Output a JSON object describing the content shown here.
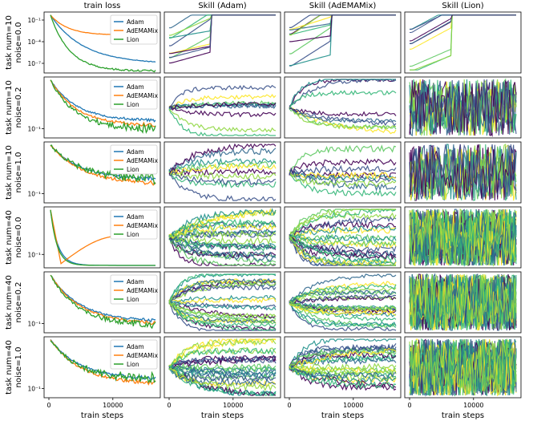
{
  "figure": {
    "column_titles": [
      "train loss",
      "Skill (Adam)",
      "Skill (AdEMAMix)",
      "Skill (Lion)"
    ],
    "row_labels": [
      [
        "task num=10",
        "noise=0.0"
      ],
      [
        "task num=10",
        "noise=0.2"
      ],
      [
        "task num=10",
        "noise=1.0"
      ],
      [
        "task num=40",
        "noise=0.0"
      ],
      [
        "task num=40",
        "noise=0.2"
      ],
      [
        "task num=40",
        "noise=1.0"
      ]
    ],
    "xlabel": "train steps",
    "xticks": [
      "0",
      "10000"
    ],
    "legend": [
      "Adam",
      "AdEMAMix",
      "Lion"
    ],
    "colors": {
      "Adam": "#1f77b4",
      "AdEMAMix": "#ff7f0e",
      "Lion": "#2ca02c"
    },
    "skill_palette": [
      "#440154",
      "#3b528b",
      "#21918c",
      "#5ec962",
      "#fde725",
      "#31688e",
      "#35b779",
      "#90d743"
    ],
    "loss_yticks": [
      [
        "10⁻¹",
        "10⁻⁴",
        "10⁻⁷"
      ],
      [
        "10⁻¹"
      ],
      [
        "10⁻¹"
      ],
      [
        "10⁻¹"
      ],
      [
        "10⁻¹"
      ],
      [
        "10⁻¹"
      ]
    ]
  },
  "chart_data": {
    "type": "line",
    "grid": "3x? panels: 6 rows x 4 columns",
    "x_range": [
      0,
      16000
    ],
    "loss_panels": [
      {
        "row": 0,
        "y_scale": "log",
        "series": [
          {
            "name": "Adam",
            "shape": "steady decay to ~1e-7"
          },
          {
            "name": "AdEMAMix",
            "shape": "decay then plateau ~1e-2"
          },
          {
            "name": "Lion",
            "shape": "fast decay below 1e-8 with noisy spikes"
          }
        ]
      },
      {
        "row": 1,
        "y_scale": "log",
        "series": [
          {
            "name": "Adam",
            "shape": "decay to ~0.09"
          },
          {
            "name": "AdEMAMix",
            "shape": "decay to ~0.06"
          },
          {
            "name": "Lion",
            "shape": "noisy decay to ~0.05"
          }
        ]
      },
      {
        "row": 2,
        "y_scale": "log",
        "series": [
          {
            "name": "Adam",
            "shape": "decay to ~0.2"
          },
          {
            "name": "AdEMAMix",
            "shape": "decay to ~0.17"
          },
          {
            "name": "Lion",
            "shape": "noisy decay ~0.2"
          }
        ]
      },
      {
        "row": 3,
        "y_scale": "log",
        "series": [
          {
            "name": "Adam",
            "shape": "fast drop to ~0.03"
          },
          {
            "name": "AdEMAMix",
            "shape": "drop then rise to ~0.08"
          },
          {
            "name": "Lion",
            "shape": "fast drop to ~0.03"
          }
        ]
      },
      {
        "row": 4,
        "y_scale": "log",
        "series": [
          {
            "name": "Adam",
            "shape": "decay to ~0.09"
          },
          {
            "name": "AdEMAMix",
            "shape": "decay to ~0.08"
          },
          {
            "name": "Lion",
            "shape": "noisy decay ~0.08"
          }
        ]
      },
      {
        "row": 5,
        "y_scale": "log",
        "series": [
          {
            "name": "Adam",
            "shape": "decay to ~0.1"
          },
          {
            "name": "AdEMAMix",
            "shape": "decay to ~0.09"
          },
          {
            "name": "Lion",
            "shape": "noisy decay ~0.1"
          }
        ]
      }
    ],
    "skill_panels": "per-task skill curves (0-1) for Adam, AdEMAMix, Lion across 6 settings; 10 or 40 curves each, viridis colours"
  }
}
